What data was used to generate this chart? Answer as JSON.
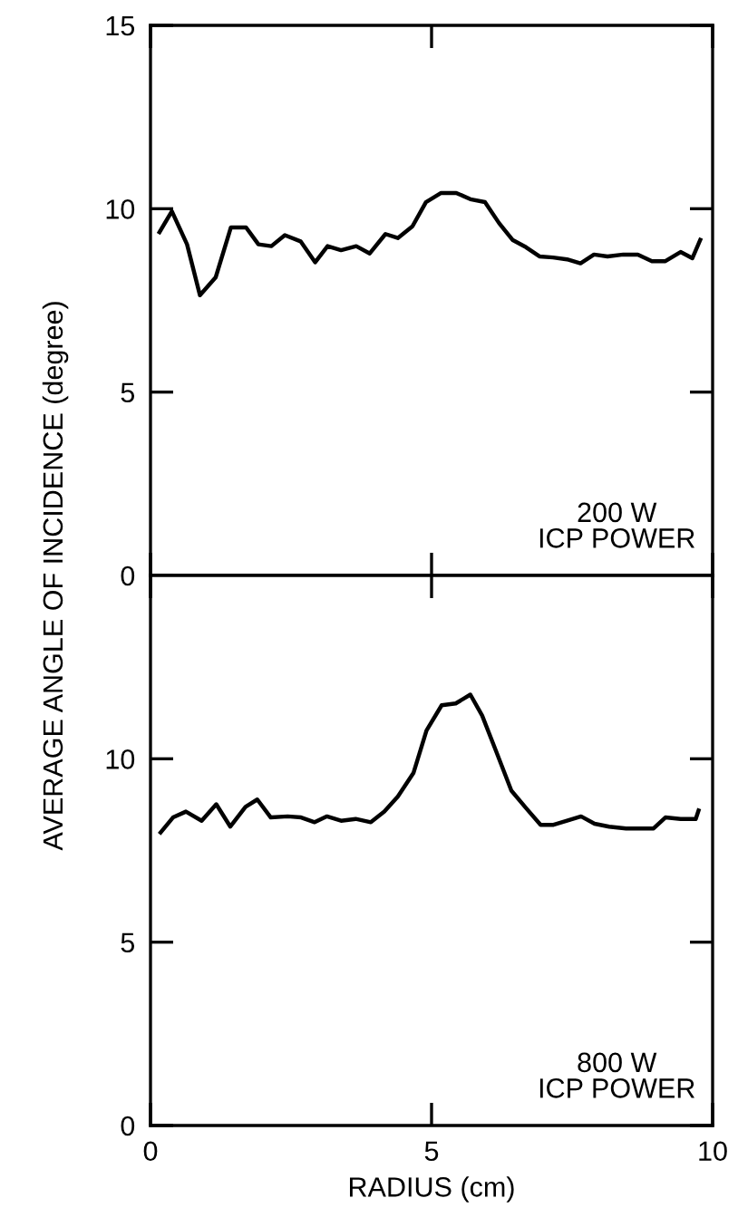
{
  "chart_data": [
    {
      "type": "line",
      "ylabel": "AVERAGE ANGLE OF INCIDENCE (degree)",
      "annotations": [
        "200 W\nICP POWER"
      ],
      "xlim": [
        0,
        10
      ],
      "xticks": [
        0,
        5,
        10
      ],
      "ylim": [
        0,
        15
      ],
      "yticks": [
        0,
        5,
        10,
        15
      ],
      "tick_labels": "y",
      "series": [
        {
          "color": "#000000",
          "x": [
            0.16,
            0.38,
            0.65,
            0.88,
            1.16,
            1.43,
            1.7,
            1.92,
            2.15,
            2.39,
            2.67,
            2.93,
            3.15,
            3.39,
            3.66,
            3.9,
            4.18,
            4.4,
            4.66,
            4.9,
            5.17,
            5.44,
            5.69,
            5.95,
            6.2,
            6.44,
            6.68,
            6.92,
            7.16,
            7.41,
            7.65,
            7.89,
            8.13,
            8.41,
            8.67,
            8.92,
            9.16,
            9.43,
            9.64,
            9.78
          ],
          "values": [
            9.36,
            9.93,
            9.03,
            7.64,
            8.13,
            9.49,
            9.49,
            9.03,
            8.98,
            9.28,
            9.11,
            8.54,
            8.98,
            8.87,
            8.98,
            8.78,
            9.31,
            9.2,
            9.52,
            10.18,
            10.43,
            10.43,
            10.26,
            10.18,
            9.61,
            9.15,
            8.95,
            8.7,
            8.67,
            8.62,
            8.51,
            8.75,
            8.7,
            8.75,
            8.75,
            8.57,
            8.57,
            8.82,
            8.65,
            9.15
          ]
        }
      ]
    },
    {
      "type": "line",
      "xlabel": "RADIUS (cm)",
      "annotations": [
        "800 W\nICP POWER"
      ],
      "xlim": [
        0,
        10
      ],
      "xticks": [
        0,
        5,
        10
      ],
      "ylim": [
        0,
        15
      ],
      "yticks": [
        0,
        5,
        10
      ],
      "series": [
        {
          "color": "#000000",
          "x": [
            0.18,
            0.4,
            0.63,
            0.91,
            1.17,
            1.42,
            1.69,
            1.9,
            2.14,
            2.44,
            2.68,
            2.92,
            3.14,
            3.39,
            3.65,
            3.92,
            4.16,
            4.4,
            4.68,
            4.91,
            5.18,
            5.43,
            5.69,
            5.9,
            6.15,
            6.42,
            6.69,
            6.94,
            7.17,
            7.41,
            7.66,
            7.9,
            8.16,
            8.46,
            8.7,
            8.95,
            9.16,
            9.43,
            9.7,
            9.75
          ],
          "values": [
            7.99,
            8.4,
            8.56,
            8.31,
            8.76,
            8.15,
            8.69,
            8.89,
            8.4,
            8.43,
            8.4,
            8.27,
            8.43,
            8.31,
            8.36,
            8.27,
            8.56,
            8.97,
            9.62,
            10.77,
            11.46,
            11.51,
            11.75,
            11.18,
            10.2,
            9.13,
            8.64,
            8.2,
            8.2,
            8.31,
            8.43,
            8.23,
            8.15,
            8.1,
            8.1,
            8.1,
            8.4,
            8.36,
            8.36,
            8.59
          ]
        }
      ]
    }
  ]
}
